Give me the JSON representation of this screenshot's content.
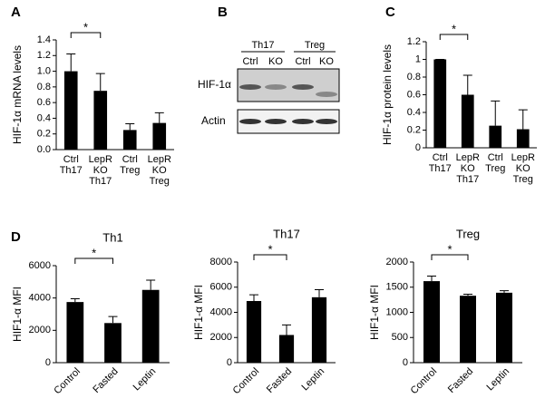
{
  "chart_data": [
    {
      "type": "bar",
      "panel": "A",
      "y_label": "HIF-1α  mRNA levels",
      "categories": [
        [
          "Ctrl",
          "Th17"
        ],
        [
          "LepR",
          "KO",
          "Th17"
        ],
        [
          "Ctrl",
          "Treg"
        ],
        [
          "LepR",
          "KO",
          "Treg"
        ]
      ],
      "values": [
        1.0,
        0.75,
        0.25,
        0.34
      ],
      "errors": [
        0.22,
        0.22,
        0.08,
        0.13
      ],
      "color": "#000000",
      "ylim": [
        0,
        1.4
      ],
      "yticks": [
        {
          "value": 0,
          "label": "0.0"
        },
        0.2,
        0.4,
        0.6,
        0.8,
        {
          "value": 1,
          "label": "1.0"
        },
        1.2,
        1.4
      ],
      "significance": [
        {
          "from": 0,
          "to": 1,
          "label": "*"
        }
      ]
    },
    {
      "type": "blot",
      "panel": "B",
      "groups": [
        {
          "label": "Th17",
          "lanes": [
            "Ctrl",
            "KO"
          ]
        },
        {
          "label": "Treg",
          "lanes": [
            "Ctrl",
            "KO"
          ]
        }
      ],
      "rows": [
        "HIF-1α",
        "Actin"
      ]
    },
    {
      "type": "bar",
      "panel": "C",
      "y_label": "HIF-1α  protein levels",
      "categories": [
        [
          "Ctrl",
          "Th17"
        ],
        [
          "LepR",
          "KO",
          "Th17"
        ],
        [
          "Ctrl",
          "Treg"
        ],
        [
          "LepR",
          "KO",
          "Treg"
        ]
      ],
      "values": [
        1.0,
        0.6,
        0.25,
        0.21
      ],
      "errors": [
        0,
        0.22,
        0.28,
        0.22
      ],
      "color": "#000000",
      "ylim": [
        0,
        1.2
      ],
      "yticks": [
        0,
        0.2,
        0.4,
        0.6,
        0.8,
        1,
        1.2
      ],
      "significance": [
        {
          "from": 0,
          "to": 1,
          "label": "*"
        }
      ]
    },
    {
      "type": "bar",
      "panel": "D",
      "title": "Th1",
      "y_label": "HIF1-α MFI",
      "categories": [
        "Control",
        "Fasted",
        "Leptin"
      ],
      "values": [
        3750,
        2450,
        4500
      ],
      "errors": [
        200,
        400,
        600
      ],
      "color": "#000000",
      "ylim": [
        0,
        6000
      ],
      "yticks": [
        0,
        2000,
        4000,
        6000
      ],
      "significance": [
        {
          "from": 0,
          "to": 1,
          "label": "*"
        }
      ]
    },
    {
      "type": "bar",
      "title": "Th17",
      "y_label": "HIF1-α MFI",
      "categories": [
        "Control",
        "Fasted",
        "Leptin"
      ],
      "values": [
        4900,
        2200,
        5200
      ],
      "errors": [
        500,
        800,
        600
      ],
      "color": "#000000",
      "ylim": [
        0,
        8000
      ],
      "yticks": [
        0,
        2000,
        4000,
        6000,
        8000
      ],
      "significance": [
        {
          "from": 0,
          "to": 1,
          "label": "*"
        }
      ]
    },
    {
      "type": "bar",
      "title": "Treg",
      "y_label": "HIF1-α MFI",
      "categories": [
        "Control",
        "Fasted",
        "Leptin"
      ],
      "values": [
        1620,
        1330,
        1390
      ],
      "errors": [
        100,
        30,
        40
      ],
      "color": "#000000",
      "ylim": [
        0,
        2000
      ],
      "yticks": [
        0,
        500,
        1000,
        1500,
        2000
      ],
      "significance": [
        {
          "from": 0,
          "to": 1,
          "label": "*"
        }
      ]
    }
  ]
}
